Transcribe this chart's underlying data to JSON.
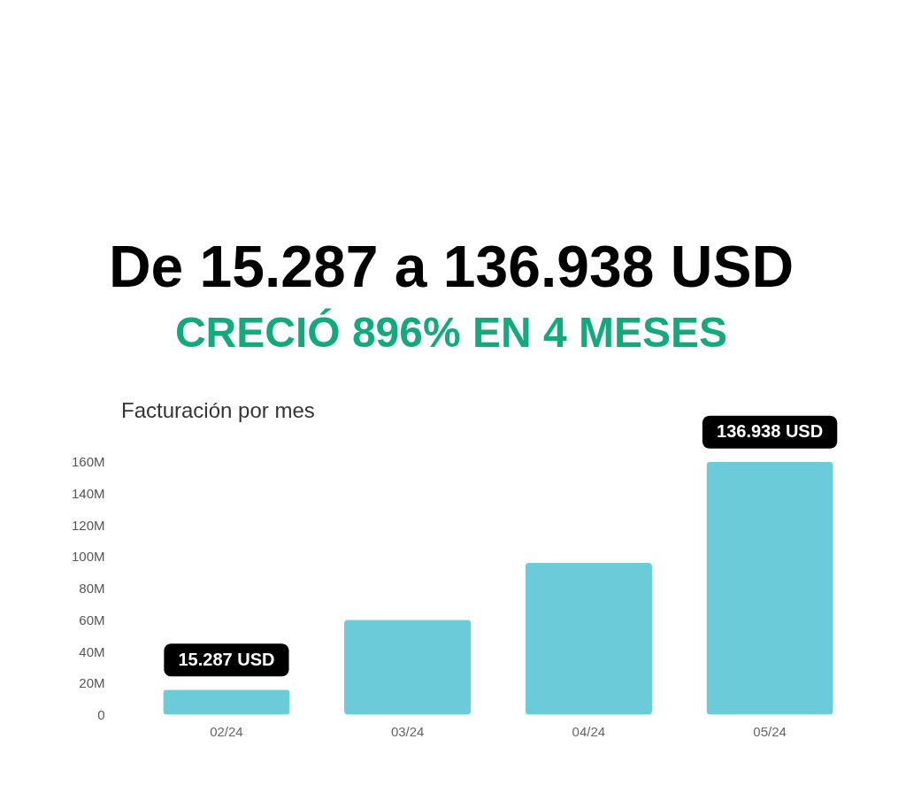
{
  "chart_data": {
    "type": "bar",
    "title": "De 15.287 a 136.938 USD",
    "subtitle": "CRECIÓ 896% EN 4 MESES",
    "categories": [
      "02/24",
      "03/24",
      "04/24",
      "05/24"
    ],
    "values": [
      15.8,
      60,
      96,
      160
    ],
    "color": "#6ccbd8",
    "ylim": [
      0,
      160
    ],
    "yticks": [
      0,
      {
        "value": 20,
        "label": "20M"
      },
      {
        "value": 40,
        "label": "40M"
      },
      {
        "value": 60,
        "label": "60M"
      },
      {
        "value": 80,
        "label": "80M"
      },
      {
        "value": 100,
        "label": "100M"
      },
      {
        "value": 120,
        "label": "120M"
      },
      {
        "value": 140,
        "label": "140M"
      },
      {
        "value": 160,
        "label": "160M"
      }
    ],
    "grid": false,
    "annotations": [
      "Facturación por mes",
      {
        "text": "15.287 USD",
        "x": "02/24",
        "y": 15.8
      },
      {
        "text": "136.938 USD",
        "x": "05/24",
        "y": 160
      }
    ]
  }
}
